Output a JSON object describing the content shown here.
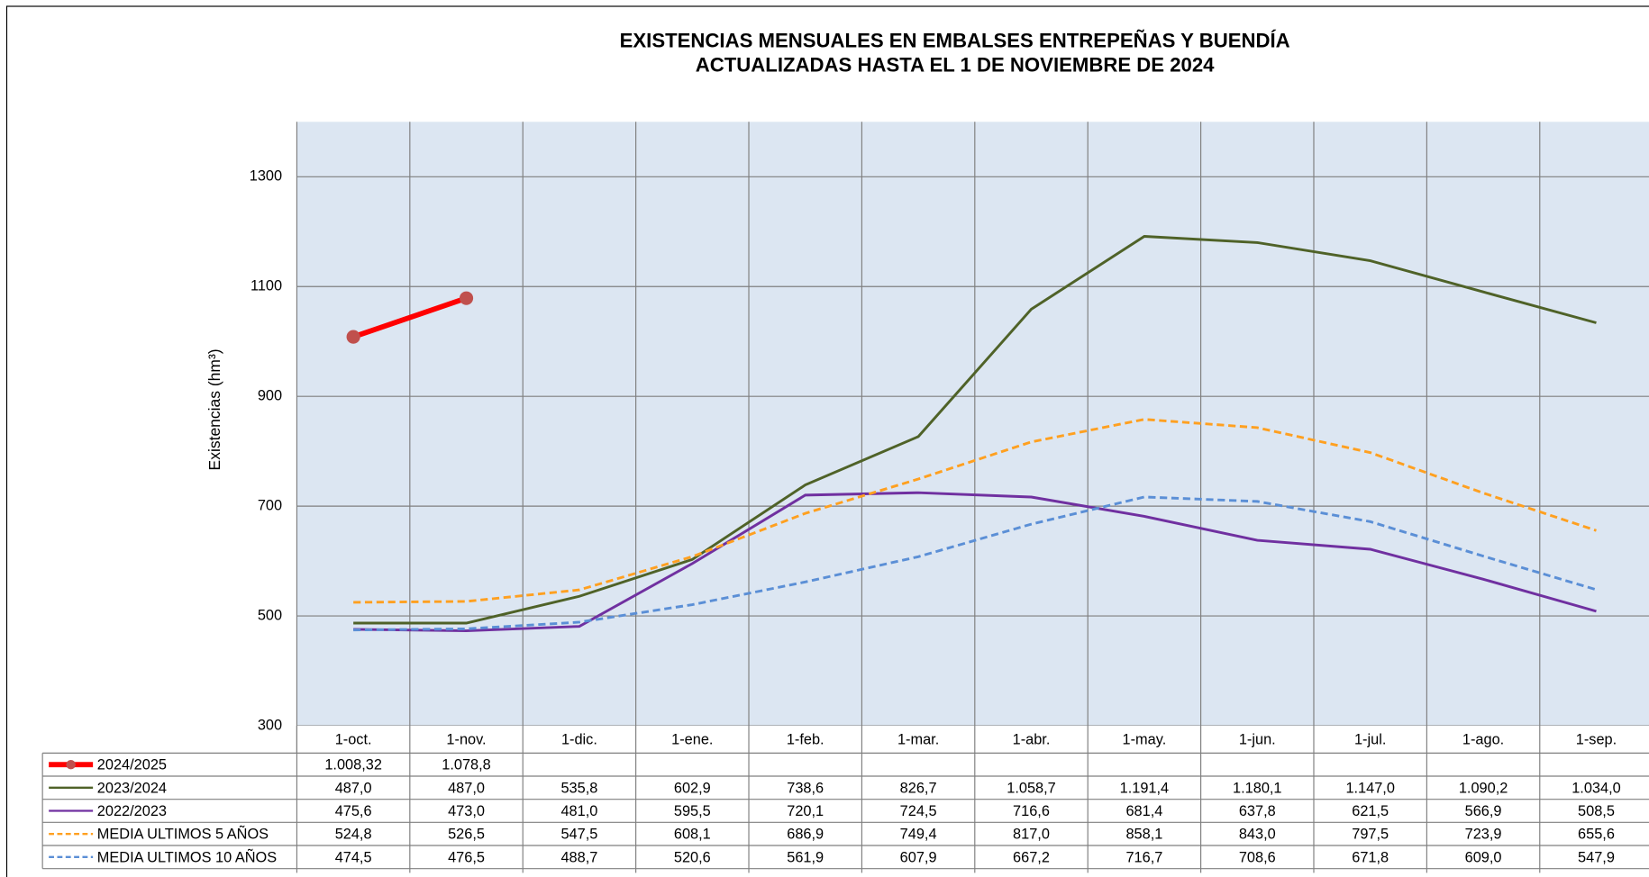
{
  "chart_data": {
    "type": "line",
    "title": "EXISTENCIAS MENSUALES EN EMBALSES ENTREPEÑAS Y BUENDÍA",
    "subtitle": "ACTUALIZADAS  HASTA EL 1 DE NOVIEMBRE DE 2024",
    "y_label": "Existencias (hm³)",
    "categories": [
      "1-oct.",
      "1-nov.",
      "1-dic.",
      "1-ene.",
      "1-feb.",
      "1-mar.",
      "1-abr.",
      "1-may.",
      "1-jun.",
      "1-jul.",
      "1-ago.",
      "1-sep."
    ],
    "ylim": [
      300,
      1400
    ],
    "yticks": [
      300,
      500,
      700,
      900,
      1100,
      1300
    ],
    "grid": true,
    "series": [
      {
        "name": "2024/2025",
        "color": "#ff0000",
        "marker": true,
        "dash": false,
        "values": [
          1008.32,
          1078.8,
          null,
          null,
          null,
          null,
          null,
          null,
          null,
          null,
          null,
          null
        ],
        "value_labels": [
          "1.008,32",
          "1.078,8",
          null,
          null,
          null,
          null,
          null,
          null,
          null,
          null,
          null,
          null
        ]
      },
      {
        "name": "2023/2024",
        "color": "#4f6228",
        "marker": false,
        "dash": false,
        "values": [
          487.0,
          487.0,
          535.8,
          602.9,
          738.6,
          826.7,
          1058.7,
          1191.4,
          1180.1,
          1147.0,
          1090.2,
          1034.0
        ],
        "value_labels": [
          "487,0",
          "487,0",
          "535,8",
          "602,9",
          "738,6",
          "826,7",
          "1.058,7",
          "1.191,4",
          "1.180,1",
          "1.147,0",
          "1.090,2",
          "1.034,0"
        ]
      },
      {
        "name": "2022/2023",
        "color": "#7030a0",
        "marker": false,
        "dash": false,
        "values": [
          475.6,
          473.0,
          481.0,
          595.5,
          720.1,
          724.5,
          716.6,
          681.4,
          637.8,
          621.5,
          566.9,
          508.5
        ],
        "value_labels": [
          "475,6",
          "473,0",
          "481,0",
          "595,5",
          "720,1",
          "724,5",
          "716,6",
          "681,4",
          "637,8",
          "621,5",
          "566,9",
          "508,5"
        ]
      },
      {
        "name": "MEDIA ULTIMOS 5 AÑOS",
        "color": "#ffa020",
        "marker": false,
        "dash": true,
        "values": [
          524.8,
          526.5,
          547.5,
          608.1,
          686.9,
          749.4,
          817.0,
          858.1,
          843.0,
          797.5,
          723.9,
          655.6
        ],
        "value_labels": [
          "524,8",
          "526,5",
          "547,5",
          "608,1",
          "686,9",
          "749,4",
          "817,0",
          "858,1",
          "843,0",
          "797,5",
          "723,9",
          "655,6"
        ]
      },
      {
        "name": "MEDIA ULTIMOS 10 AÑOS",
        "color": "#5b8fd6",
        "marker": false,
        "dash": true,
        "values": [
          474.5,
          476.5,
          488.7,
          520.6,
          561.9,
          607.9,
          667.2,
          716.7,
          708.6,
          671.8,
          609.0,
          547.9
        ],
        "value_labels": [
          "474,5",
          "476,5",
          "488,7",
          "520,6",
          "561,9",
          "607,9",
          "667,2",
          "716,7",
          "708,6",
          "671,8",
          "609,0",
          "547,9"
        ]
      }
    ]
  }
}
